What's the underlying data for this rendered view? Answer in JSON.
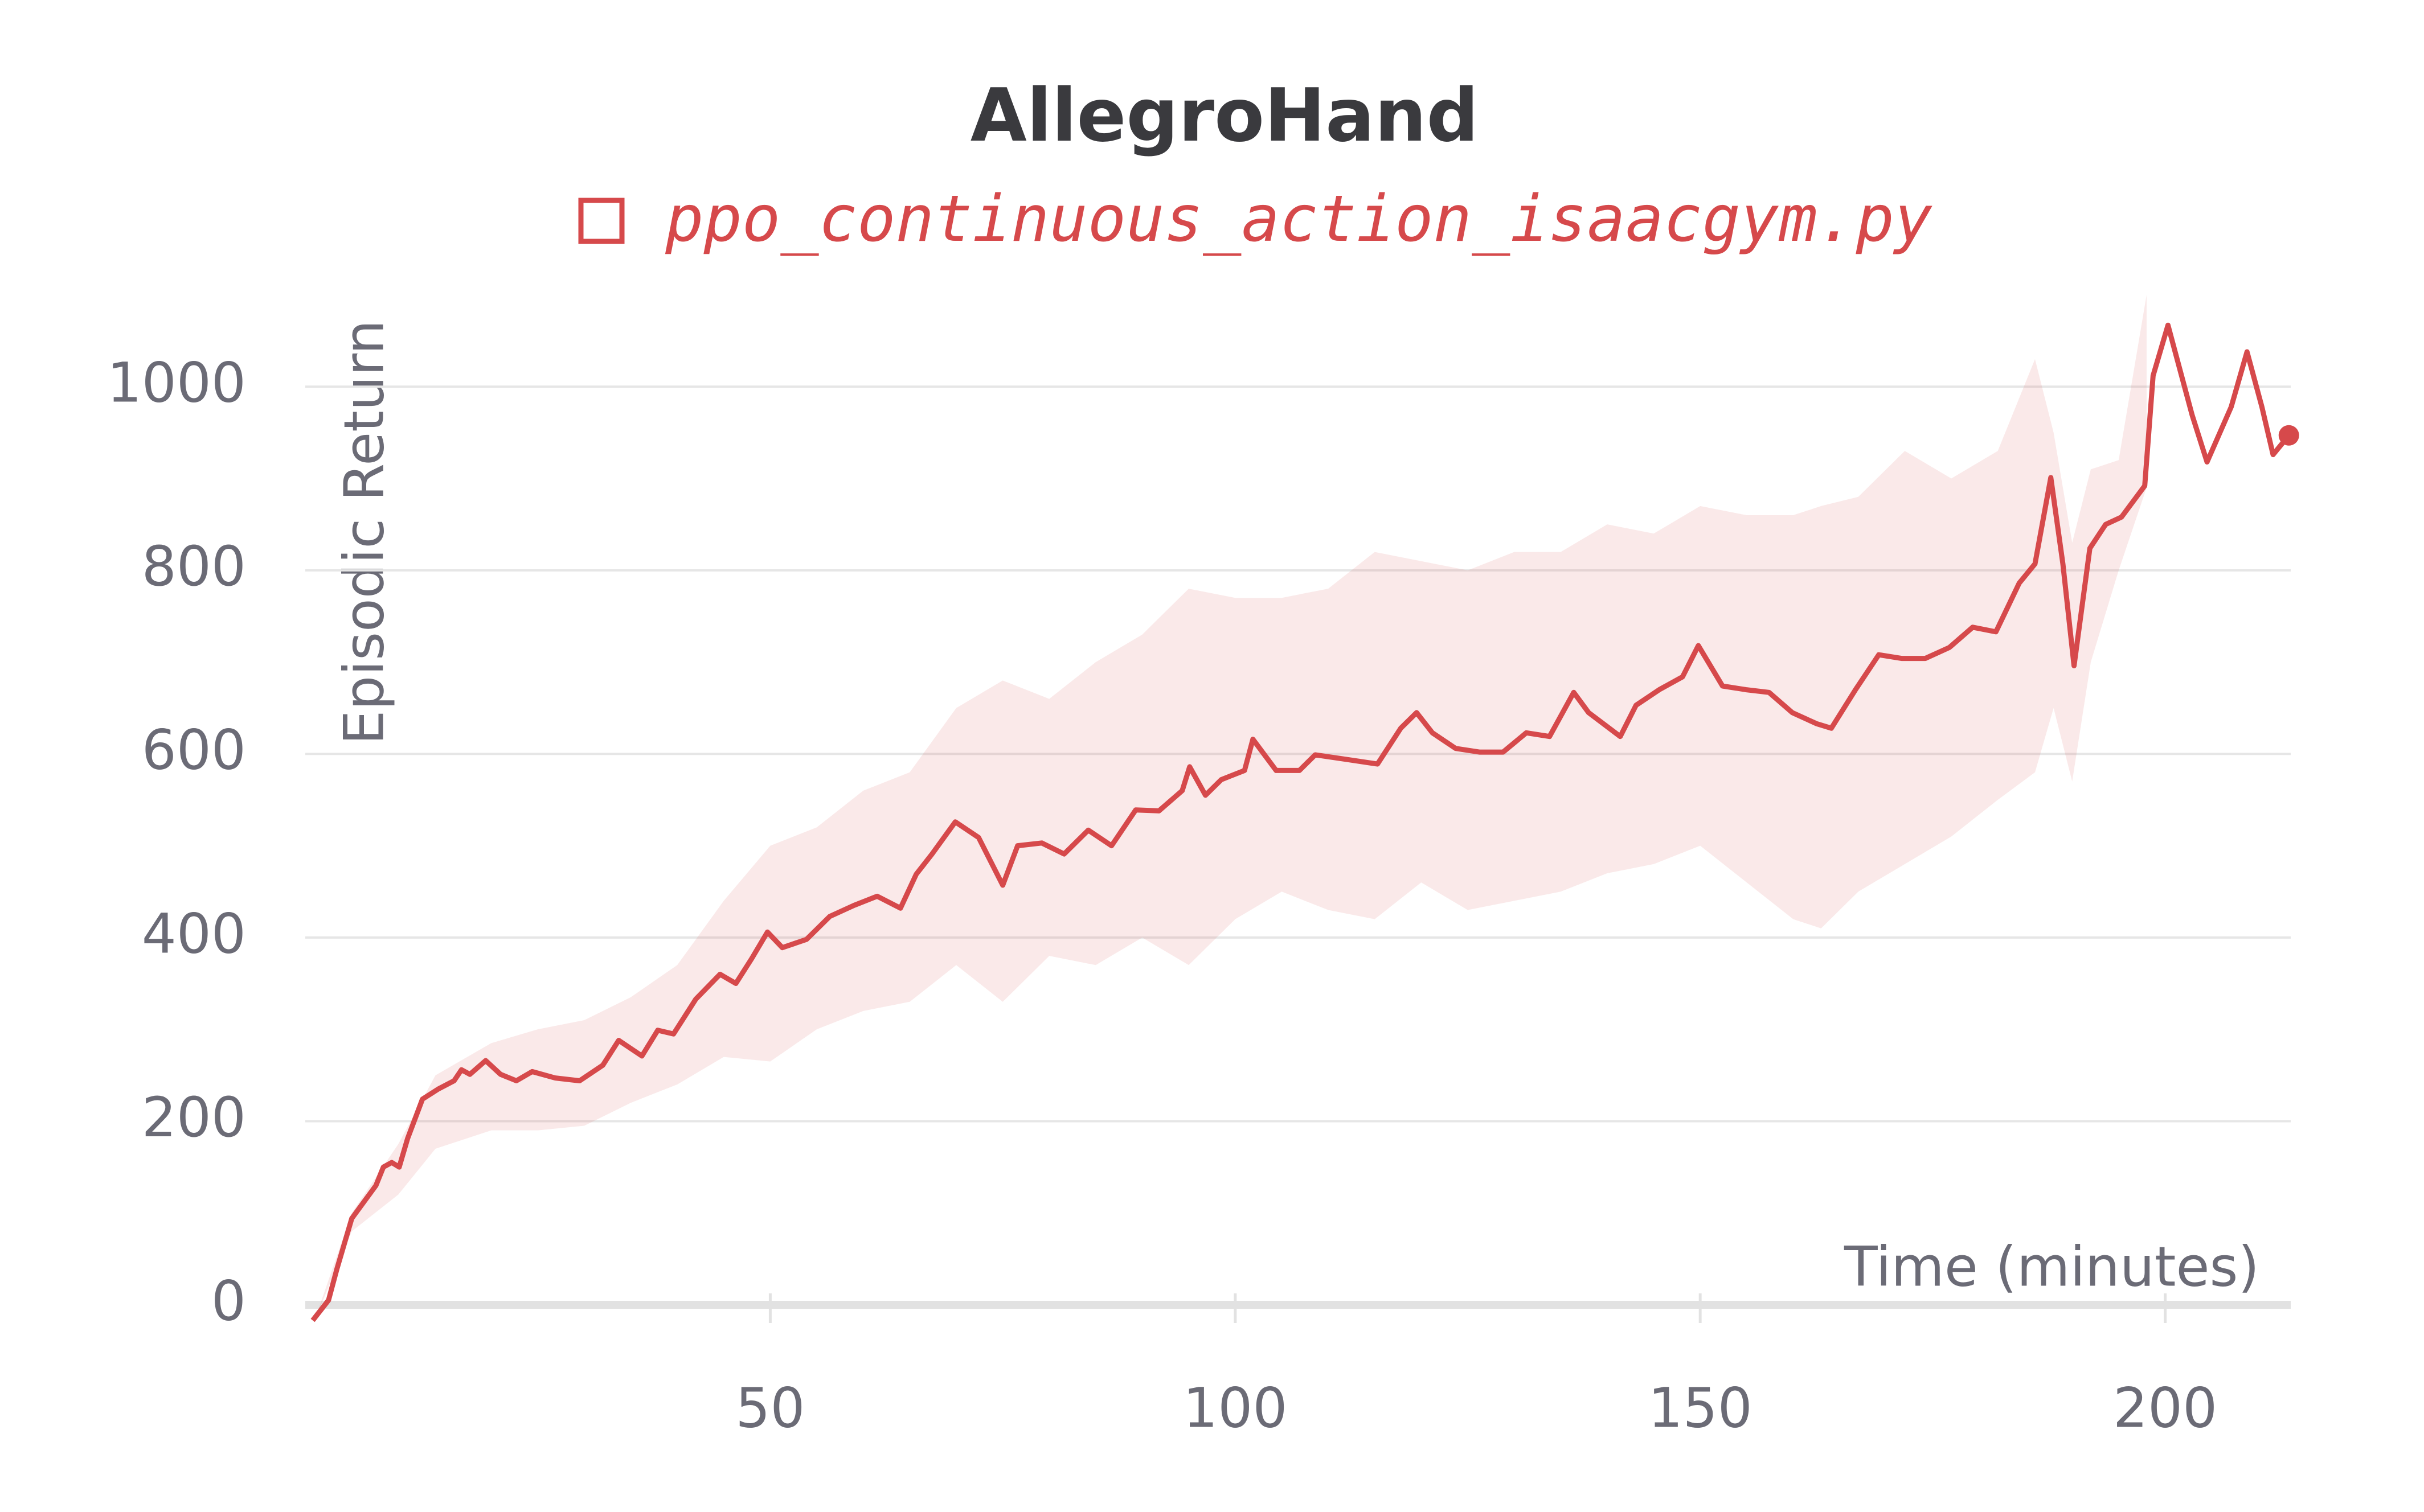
{
  "chart_data": {
    "type": "line",
    "title": "AllegroHand",
    "x_label": "Time (minutes)",
    "y_label": "Episodic Return",
    "xlim": [
      0,
      213.5
    ],
    "ylim": [
      0,
      1100
    ],
    "xticks": [
      50,
      100,
      150,
      200
    ],
    "yticks": [
      0,
      200,
      400,
      600,
      800,
      1000
    ],
    "grid": true,
    "series": [
      {
        "name": "ppo_continuous_action_isaacgym.py",
        "color": "#d6494b",
        "x": [
          0.8,
          2.5,
          3.4,
          5,
          7.6,
          8.4,
          9.3,
          10.1,
          11,
          12.6,
          14.3,
          16,
          16.8,
          17.7,
          19.4,
          21,
          22.7,
          24.4,
          26.9,
          29.5,
          32,
          33.7,
          36.2,
          37.9,
          39.6,
          42,
          44.6,
          46.3,
          48,
          49.7,
          51.3,
          53.9,
          56.4,
          59,
          61.5,
          64,
          65.7,
          67.4,
          69.9,
          72.4,
          75,
          76.6,
          79.2,
          81.6,
          84.2,
          86.7,
          89.3,
          91.8,
          94.3,
          95.1,
          96.8,
          98.5,
          101,
          101.9,
          104.4,
          106.9,
          108.6,
          112,
          115.3,
          117.8,
          119.5,
          121.2,
          123.7,
          126.3,
          128.8,
          131.3,
          133.8,
          136.4,
          138,
          141.4,
          143.1,
          145.6,
          148.1,
          149.8,
          152.4,
          154.9,
          157.4,
          159.9,
          162.5,
          164.1,
          166.7,
          169.2,
          171.7,
          174.2,
          176.8,
          179.3,
          181.8,
          184.3,
          186,
          187.7,
          189,
          190.2,
          191.9,
          193.6,
          195.3,
          197.8,
          198.7,
          200.3,
          202.9,
          204.5,
          207.1,
          208.8,
          210.4,
          211.6,
          213.3
        ],
        "values": [
          -17,
          5,
          39,
          94,
          130,
          150,
          155,
          150,
          181,
          224,
          235,
          244,
          256,
          251,
          266,
          251,
          244,
          254,
          247,
          244,
          261,
          288,
          271,
          299,
          295,
          333,
          360,
          350,
          377,
          406,
          389,
          398,
          423,
          435,
          445,
          432,
          469,
          491,
          526,
          509,
          457,
          500,
          503,
          491,
          517,
          500,
          539,
          538,
          560,
          586,
          555,
          572,
          582,
          616,
          582,
          582,
          599,
          594,
          589,
          628,
          645,
          623,
          606,
          602,
          602,
          623,
          619,
          667,
          645,
          619,
          653,
          670,
          684,
          718,
          674,
          670,
          667,
          645,
          633,
          628,
          670,
          708,
          704,
          704,
          716,
          738,
          733,
          786,
          807,
          901,
          807,
          696,
          824,
          850,
          858,
          892,
          1012,
          1067,
          969,
          918,
          978,
          1038,
          978,
          926,
          947
        ],
        "band_x": [
          1,
          5,
          10,
          14,
          20,
          25,
          30,
          35,
          40,
          45,
          50,
          55,
          60,
          65,
          70,
          75,
          80,
          85,
          90,
          95,
          100,
          105,
          110,
          115,
          120,
          125,
          130,
          135,
          140,
          145,
          150,
          155,
          160,
          163,
          167,
          172,
          177,
          182,
          186,
          188,
          190,
          192,
          195,
          198
        ],
        "band_lower": [
          -17,
          80,
          120,
          170,
          190,
          190,
          195,
          220,
          240,
          270,
          265,
          300,
          320,
          330,
          370,
          330,
          380,
          370,
          400,
          370,
          420,
          450,
          430,
          420,
          460,
          430,
          440,
          450,
          470,
          480,
          500,
          460,
          420,
          410,
          450,
          480,
          510,
          550,
          580,
          650,
          570,
          700,
          800,
          890
        ],
        "band_upper": [
          -17,
          100,
          175,
          250,
          285,
          300,
          310,
          335,
          370,
          440,
          500,
          520,
          560,
          580,
          650,
          680,
          660,
          700,
          730,
          780,
          770,
          770,
          780,
          820,
          810,
          800,
          820,
          820,
          850,
          840,
          870,
          860,
          860,
          870,
          880,
          930,
          900,
          930,
          1030,
          950,
          830,
          910,
          920,
          1100
        ]
      }
    ]
  }
}
